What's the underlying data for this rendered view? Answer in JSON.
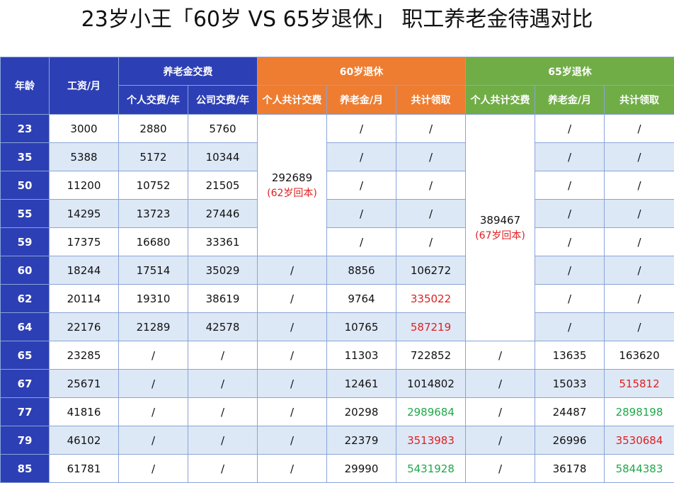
{
  "title": "23岁小王「60岁 VS 65岁退休」 职工养老金待遇对比",
  "headers": {
    "age": "年龄",
    "salary": "工资/月",
    "contrib_group": "养老金交费",
    "personal_yearly": "个人交费/年",
    "company_yearly": "公司交费/年",
    "retire60_group": "60岁退休",
    "retire65_group": "65岁退休",
    "total_personal_paid": "个人共计交费",
    "pension_monthly": "养老金/月",
    "total_received": "共计领取"
  },
  "merged": {
    "r60_total": "292689",
    "r60_note": "(62岁回本)",
    "r65_total": "389467",
    "r65_note": "(67岁回本)"
  },
  "rows": [
    {
      "age": "23",
      "salary": "3000",
      "personal": "2880",
      "company": "5760",
      "r60_paid": null,
      "r60_pension": "/",
      "r60_total": "/",
      "r65_paid": null,
      "r65_pension": "/",
      "r65_total": "/"
    },
    {
      "age": "35",
      "salary": "5388",
      "personal": "5172",
      "company": "10344",
      "r60_paid": null,
      "r60_pension": "/",
      "r60_total": "/",
      "r65_paid": null,
      "r65_pension": "/",
      "r65_total": "/"
    },
    {
      "age": "50",
      "salary": "11200",
      "personal": "10752",
      "company": "21505",
      "r60_paid": null,
      "r60_pension": "/",
      "r60_total": "/",
      "r65_paid": null,
      "r65_pension": "/",
      "r65_total": "/"
    },
    {
      "age": "55",
      "salary": "14295",
      "personal": "13723",
      "company": "27446",
      "r60_paid": null,
      "r60_pension": "/",
      "r60_total": "/",
      "r65_paid": null,
      "r65_pension": "/",
      "r65_total": "/"
    },
    {
      "age": "59",
      "salary": "17375",
      "personal": "16680",
      "company": "33361",
      "r60_paid": null,
      "r60_pension": "/",
      "r60_total": "/",
      "r65_paid": null,
      "r65_pension": "/",
      "r65_total": "/"
    },
    {
      "age": "60",
      "salary": "18244",
      "personal": "17514",
      "company": "35029",
      "r60_paid": "/",
      "r60_pension": "8856",
      "r60_total": "106272",
      "r65_paid": null,
      "r65_pension": "/",
      "r65_total": "/"
    },
    {
      "age": "62",
      "salary": "20114",
      "personal": "19310",
      "company": "38619",
      "r60_paid": "/",
      "r60_pension": "9764",
      "r60_total": "335022",
      "r65_paid": null,
      "r65_pension": "/",
      "r65_total": "/"
    },
    {
      "age": "64",
      "salary": "22176",
      "personal": "21289",
      "company": "42578",
      "r60_paid": "/",
      "r60_pension": "10765",
      "r60_total": "587219",
      "r65_paid": null,
      "r65_pension": "/",
      "r65_total": "/"
    },
    {
      "age": "65",
      "salary": "23285",
      "personal": "/",
      "company": "/",
      "r60_paid": "/",
      "r60_pension": "11303",
      "r60_total": "722852",
      "r65_paid": "/",
      "r65_pension": "13635",
      "r65_total": "163620"
    },
    {
      "age": "67",
      "salary": "25671",
      "personal": "/",
      "company": "/",
      "r60_paid": "/",
      "r60_pension": "12461",
      "r60_total": "1014802",
      "r65_paid": "/",
      "r65_pension": "15033",
      "r65_total": "515812"
    },
    {
      "age": "77",
      "salary": "41816",
      "personal": "/",
      "company": "/",
      "r60_paid": "/",
      "r60_pension": "20298",
      "r60_total": "2989684",
      "r65_paid": "/",
      "r65_pension": "24487",
      "r65_total": "2898198"
    },
    {
      "age": "79",
      "salary": "46102",
      "personal": "/",
      "company": "/",
      "r60_paid": "/",
      "r60_pension": "22379",
      "r60_total": "3513983",
      "r65_paid": "/",
      "r65_pension": "26996",
      "r65_total": "3530684"
    },
    {
      "age": "85",
      "salary": "61781",
      "personal": "/",
      "company": "/",
      "r60_paid": "/",
      "r60_pension": "29990",
      "r60_total": "5431928",
      "r65_paid": "/",
      "r65_pension": "36178",
      "r65_total": "5844383"
    }
  ],
  "colors": {
    "header_blue": "#2d3fb4",
    "header_orange": "#ee7d31",
    "header_green": "#71ad47",
    "stripe": "#dde8f6",
    "text_red": "#e02020",
    "text_green": "#1fa84a"
  },
  "highlights": {
    "red": [
      "r60_total:62",
      "r60_total:64",
      "r65_total:67",
      "r60_total:79",
      "r65_total:79"
    ],
    "green": [
      "r60_total:77",
      "r65_total:77",
      "r60_total:85",
      "r65_total:85"
    ]
  }
}
